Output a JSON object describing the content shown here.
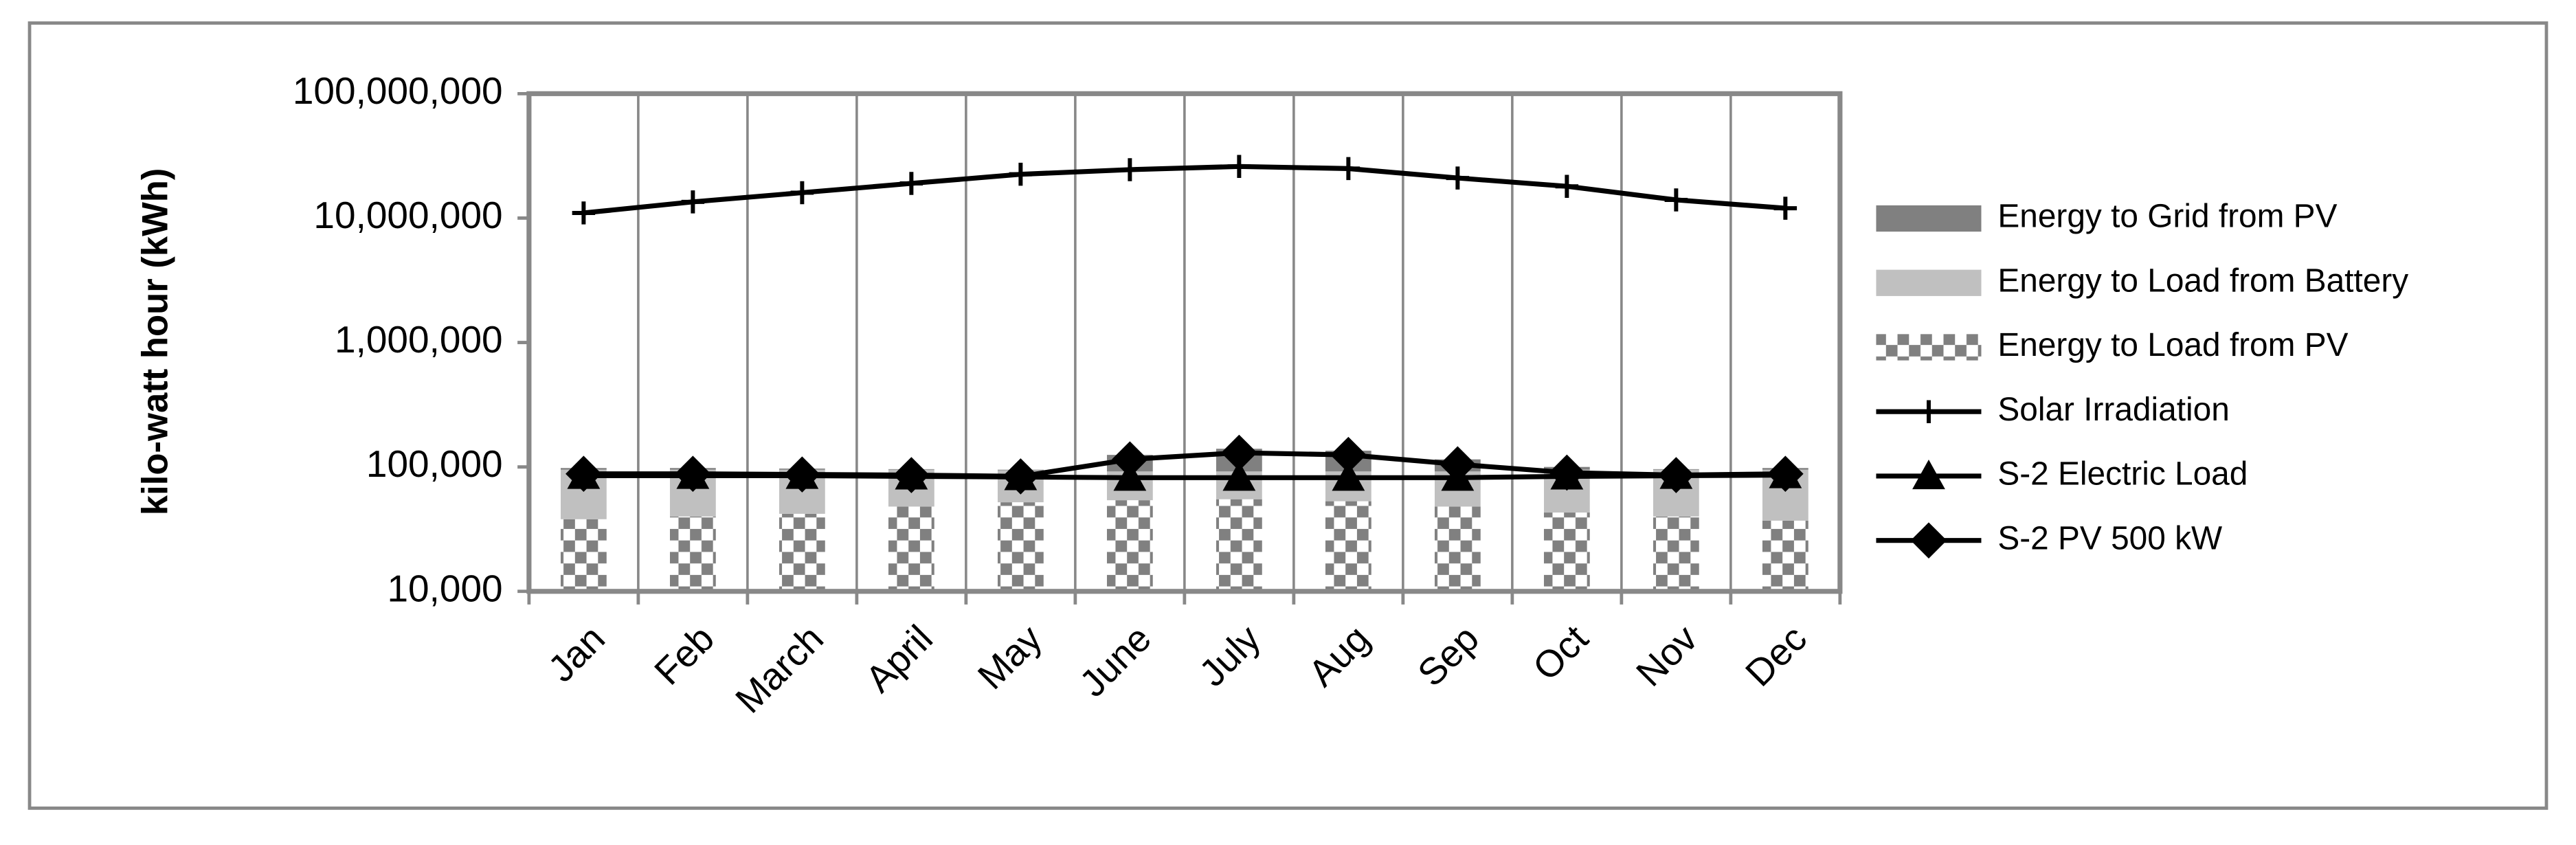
{
  "chart_data": {
    "type": "stacked-bar-line",
    "y_axis_label": "kilo-watt hour (kWh)",
    "categories": [
      "Jan",
      "Feb",
      "March",
      "April",
      "May",
      "June",
      "July",
      "Aug",
      "Sep",
      "Oct",
      "Nov",
      "Dec"
    ],
    "log_scale": true,
    "ylim": [
      10000,
      100000000
    ],
    "yticks": [
      {
        "value": 10000,
        "label": "10,000"
      },
      {
        "value": 100000,
        "label": "100,000"
      },
      {
        "value": 1000000,
        "label": "1,000,000"
      },
      {
        "value": 10000000,
        "label": "10,000,000"
      },
      {
        "value": 100000000,
        "label": "100,000,000"
      }
    ],
    "vertical_grid": true,
    "legend_position": "right",
    "bar_series": [
      {
        "name": "Energy to Load from PV",
        "color": "#808080",
        "pattern": "checker",
        "values": [
          28000,
          30000,
          32000,
          38000,
          42000,
          44000,
          45000,
          43000,
          38000,
          33000,
          30000,
          27000
        ]
      },
      {
        "name": "Energy to Load from Battery",
        "color": "#c0c0c0",
        "values": [
          57000,
          55000,
          53000,
          47000,
          42000,
          38000,
          37000,
          39000,
          44000,
          52000,
          55000,
          58000
        ]
      },
      {
        "name": "Energy to Grid from PV",
        "color": "#808080",
        "values": [
          3000,
          3000,
          2000,
          1000,
          1000,
          33000,
          48000,
          43000,
          23000,
          5000,
          1000,
          3000
        ]
      }
    ],
    "line_series": [
      {
        "name": "Solar Irradiation",
        "color": "#000000",
        "marker": "plus",
        "values": [
          11000000,
          13500000,
          16000000,
          19000000,
          22500000,
          24500000,
          26000000,
          25000000,
          21000000,
          18000000,
          14000000,
          12000000
        ]
      },
      {
        "name": "S-2 Electric Load",
        "color": "#000000",
        "marker": "triangle",
        "values": [
          85000,
          85000,
          85000,
          84000,
          83000,
          82000,
          82000,
          82000,
          82000,
          84000,
          85000,
          86000
        ]
      },
      {
        "name": "S-2 PV 500 kW",
        "color": "#000000",
        "marker": "diamond",
        "values": [
          88000,
          88000,
          87000,
          86000,
          84000,
          115000,
          130000,
          125000,
          105000,
          90000,
          86000,
          88000
        ]
      }
    ]
  }
}
